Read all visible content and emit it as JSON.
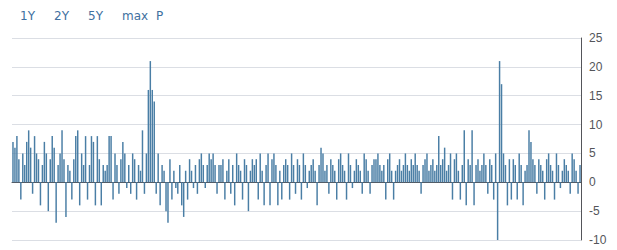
{
  "chart_data": {
    "type": "bar",
    "annotations": [
      "1Y",
      "2Y",
      "5Y",
      "max",
      "P"
    ],
    "values": [
      7,
      6,
      8,
      4,
      -3,
      5,
      3,
      7,
      9,
      6,
      -2,
      8,
      5,
      4,
      -4,
      3,
      7,
      5,
      -5,
      4,
      8,
      6,
      -7,
      3,
      5,
      9,
      4,
      -6,
      3,
      2,
      -3,
      4,
      8,
      9,
      -4,
      5,
      3,
      8,
      -3,
      3,
      8,
      7,
      -4,
      8,
      4,
      -4,
      3,
      2,
      3,
      8,
      8,
      -3,
      5,
      3,
      -2,
      4,
      7,
      5,
      -1,
      3,
      -2,
      5,
      4,
      -3,
      3,
      2,
      9,
      -2,
      5,
      16,
      21,
      16,
      14,
      -2,
      5,
      -4,
      3,
      2,
      -5,
      -7,
      4,
      -3,
      2,
      -1,
      -2,
      3,
      -4,
      -6,
      2,
      -3,
      4,
      2,
      -1,
      3,
      -2,
      4,
      5,
      3,
      -1,
      3,
      5,
      4,
      5,
      3,
      -2,
      3,
      3,
      4,
      -3,
      2,
      4,
      -2,
      3,
      -4,
      5,
      3,
      2,
      -3,
      4,
      3,
      -5,
      2,
      4,
      3,
      4,
      -3,
      5,
      2,
      -4,
      3,
      5,
      -4,
      4,
      5,
      3,
      -4,
      2,
      -3,
      3,
      4,
      3,
      -3,
      5,
      3,
      -2,
      4,
      3,
      -3,
      5,
      3,
      -1,
      2,
      3,
      4,
      2,
      -4,
      3,
      6,
      5,
      2,
      3,
      -2,
      4,
      3,
      2,
      -3,
      4,
      5,
      3,
      2,
      -3,
      5,
      3,
      -1,
      2,
      4,
      3,
      2,
      -2,
      5,
      4,
      2,
      -2,
      3,
      4,
      4,
      5,
      3,
      2,
      3,
      -3,
      4,
      5,
      2,
      -3,
      2,
      3,
      4,
      2,
      3,
      5,
      3,
      2,
      4,
      3,
      5,
      3,
      2,
      -2,
      3,
      4,
      5,
      2,
      3,
      4,
      2,
      3,
      8,
      3,
      4,
      6,
      2,
      3,
      5,
      -3,
      4,
      5,
      2,
      -3,
      3,
      9,
      -4,
      4,
      3,
      9,
      -4,
      3,
      4,
      2,
      3,
      5,
      3,
      -2,
      4,
      3,
      -3,
      5,
      -10,
      21,
      17,
      5,
      3,
      -4,
      4,
      -3,
      4,
      3,
      -3,
      5,
      3,
      -4,
      2,
      3,
      9,
      7,
      4,
      3,
      -2,
      4,
      3,
      2,
      -3,
      4,
      5,
      3,
      2,
      -3,
      5,
      3,
      -1,
      2,
      4,
      3,
      2,
      -2,
      5,
      4,
      2,
      -2,
      3
    ],
    "color": "#4a7ea5",
    "ylim": [
      -10,
      25
    ],
    "yticks": [
      -10,
      -5,
      0,
      5,
      10,
      15,
      20,
      25
    ],
    "grid": true,
    "tick_labels": "y"
  }
}
